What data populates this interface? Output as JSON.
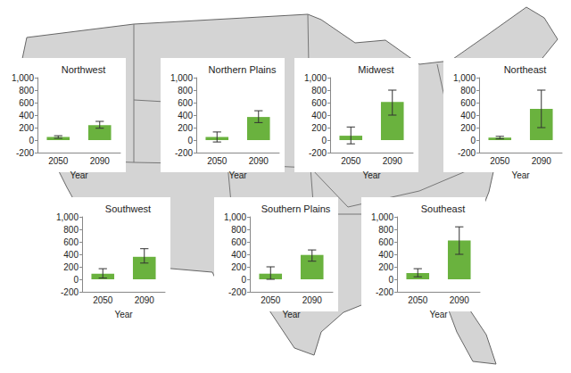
{
  "chart_data": [
    {
      "type": "bar",
      "title": "Northwest",
      "xlabel": "Year",
      "categories": [
        "2050",
        "2090"
      ],
      "values": [
        50,
        240
      ],
      "error_low": [
        30,
        190
      ],
      "error_high": [
        70,
        300
      ],
      "color": "#6ab23e",
      "ylim": [
        -200,
        1000
      ],
      "yticks": [
        -200,
        0,
        200,
        400,
        600,
        800,
        {
          "value": 1000,
          "label": "1,000"
        }
      ],
      "grid": false
    },
    {
      "type": "bar",
      "title": "Northern Plains",
      "xlabel": "Year",
      "categories": [
        "2050",
        "2090"
      ],
      "values": [
        50,
        370
      ],
      "error_low": [
        -30,
        280
      ],
      "error_high": [
        130,
        470
      ],
      "color": "#6ab23e",
      "ylim": [
        -200,
        1000
      ],
      "yticks": [
        -200,
        0,
        200,
        400,
        600,
        800,
        {
          "value": 1000,
          "label": "1,000"
        }
      ],
      "grid": false
    },
    {
      "type": "bar",
      "title": "Midwest",
      "xlabel": "Year",
      "categories": [
        "2050",
        "2090"
      ],
      "values": [
        70,
        610
      ],
      "error_low": [
        -60,
        400
      ],
      "error_high": [
        210,
        800
      ],
      "color": "#6ab23e",
      "ylim": [
        -200,
        1000
      ],
      "yticks": [
        -200,
        0,
        200,
        400,
        600,
        800,
        {
          "value": 1000,
          "label": "1,000"
        }
      ],
      "grid": false
    },
    {
      "type": "bar",
      "title": "Northeast",
      "xlabel": "Year",
      "categories": [
        "2050",
        "2090"
      ],
      "values": [
        40,
        500
      ],
      "error_low": [
        20,
        200
      ],
      "error_high": [
        60,
        800
      ],
      "color": "#6ab23e",
      "ylim": [
        -200,
        1000
      ],
      "yticks": [
        -200,
        0,
        200,
        400,
        600,
        800,
        {
          "value": 1000,
          "label": "1,000"
        }
      ],
      "grid": false
    },
    {
      "type": "bar",
      "title": "Southwest",
      "xlabel": "Year",
      "categories": [
        "2050",
        "2090"
      ],
      "values": [
        90,
        360
      ],
      "error_low": [
        20,
        260
      ],
      "error_high": [
        170,
        490
      ],
      "color": "#6ab23e",
      "ylim": [
        -200,
        1000
      ],
      "yticks": [
        -200,
        0,
        200,
        400,
        600,
        800,
        {
          "value": 1000,
          "label": "1,000"
        }
      ],
      "grid": false
    },
    {
      "type": "bar",
      "title": "Southern Plains",
      "xlabel": "Year",
      "categories": [
        "2050",
        "2090"
      ],
      "values": [
        90,
        390
      ],
      "error_low": [
        0,
        290
      ],
      "error_high": [
        200,
        470
      ],
      "color": "#6ab23e",
      "ylim": [
        -200,
        1000
      ],
      "yticks": [
        -200,
        0,
        200,
        400,
        600,
        800,
        {
          "value": 1000,
          "label": "1,000"
        }
      ],
      "grid": false
    },
    {
      "type": "bar",
      "title": "Southeast",
      "xlabel": "Year",
      "categories": [
        "2050",
        "2090"
      ],
      "values": [
        100,
        620
      ],
      "error_low": [
        40,
        400
      ],
      "error_high": [
        170,
        840
      ],
      "color": "#6ab23e",
      "ylim": [
        -200,
        1000
      ],
      "yticks": [
        -200,
        0,
        200,
        400,
        600,
        800,
        {
          "value": 1000,
          "label": "1,000"
        }
      ],
      "grid": false
    }
  ]
}
